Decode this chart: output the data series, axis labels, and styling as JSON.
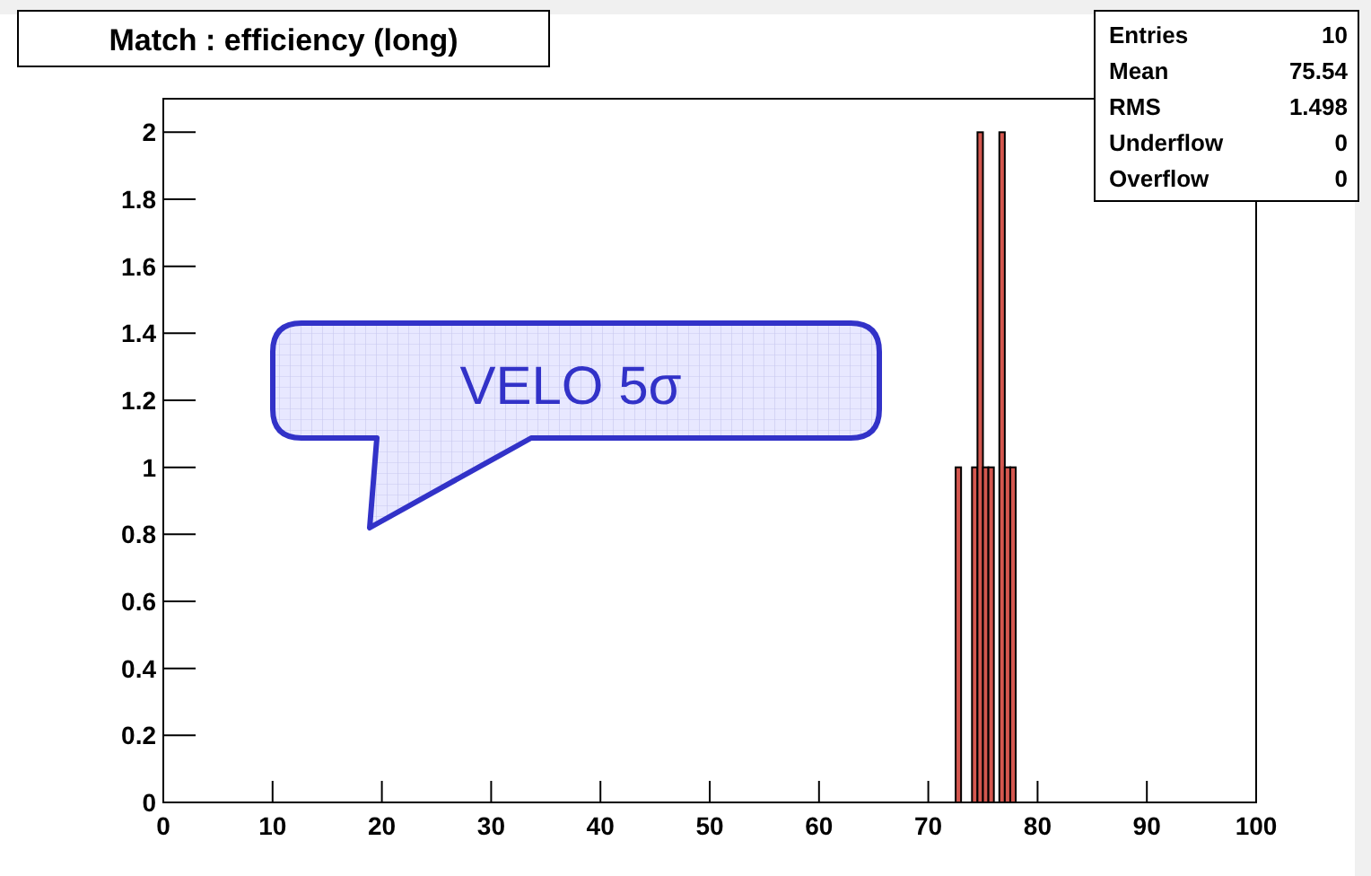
{
  "chart_data": {
    "type": "histogram",
    "title": "Match : efficiency (long)",
    "bins": [
      72.5,
      73,
      73.5,
      74,
      74.5,
      75,
      75.5,
      76,
      76.5,
      77,
      77.5,
      78
    ],
    "values": [
      1,
      0,
      0,
      1,
      2,
      1,
      1,
      0,
      2,
      1,
      1
    ],
    "color": "#d4574f",
    "xlim": [
      0,
      100
    ],
    "xticks": [
      0,
      10,
      20,
      30,
      40,
      50,
      60,
      70,
      80,
      90,
      100
    ],
    "ylim": [
      0,
      2.1
    ],
    "yticks": [
      0,
      0.2,
      0.4,
      0.6,
      0.8,
      1,
      1.2,
      1.4,
      1.6,
      1.8,
      2
    ],
    "grid": false,
    "annotations": [
      "VELO 5σ",
      "Entries 10",
      "Mean 75.54",
      "RMS 1.498",
      "Underflow 0",
      "Overflow 0"
    ]
  }
}
